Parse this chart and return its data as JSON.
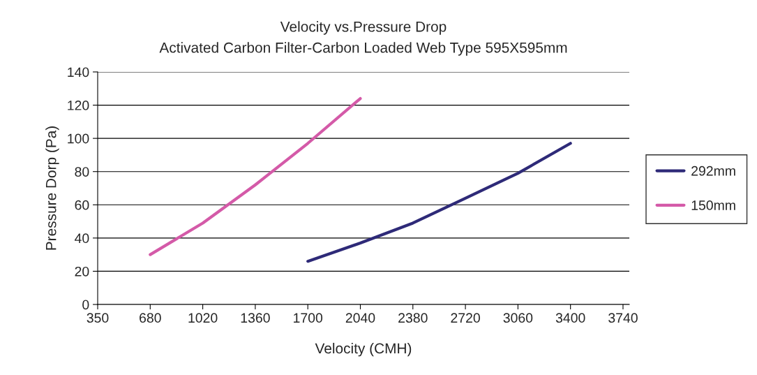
{
  "chart_data": {
    "type": "line",
    "title": "Velocity vs.Pressure Drop",
    "subtitle": "Activated Carbon Filter-Carbon Loaded Web Type 595X595mm",
    "xlabel": "Velocity (CMH)",
    "ylabel": "Pressure Dorp (Pa)",
    "categories": [
      "350",
      "680",
      "1020",
      "1360",
      "1700",
      "2040",
      "2380",
      "2720",
      "3060",
      "3400",
      "3740"
    ],
    "series": [
      {
        "name": "292mm",
        "color": "#2e2a78",
        "values": [
          null,
          null,
          null,
          null,
          26,
          37,
          49,
          64,
          79,
          97,
          null
        ]
      },
      {
        "name": "150mm",
        "color": "#d45aa8",
        "values": [
          null,
          30,
          49,
          72,
          97,
          124,
          null,
          null,
          null,
          null,
          null
        ]
      }
    ],
    "ylim": [
      0,
      140
    ],
    "yticks": [
      0,
      20,
      40,
      60,
      80,
      100,
      120,
      140
    ],
    "grid": "y",
    "legend": "right",
    "marker": "none",
    "line_style": "solid"
  }
}
